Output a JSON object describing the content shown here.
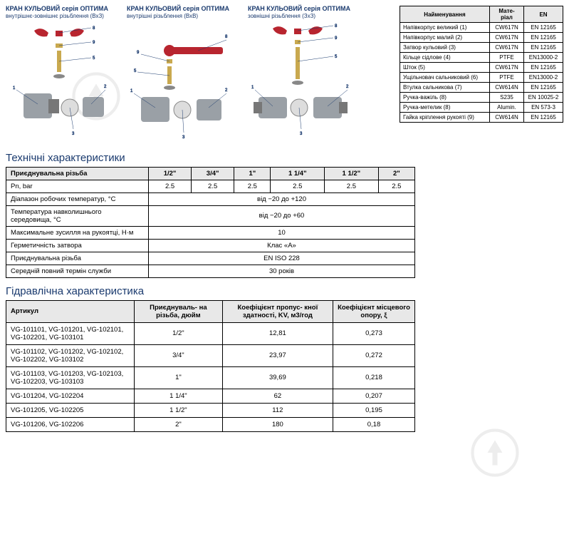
{
  "diagrams": [
    {
      "title": "КРАН КУЛЬОВИЙ серія ОПТИМА",
      "subtitle": "внутрішнє-зовнішнє різьблення (ВхЗ)"
    },
    {
      "title": "КРАН КУЛЬОВИЙ серія ОПТИМА",
      "subtitle": "внутрішні різьблення (ВхВ)"
    },
    {
      "title": "КРАН КУЛЬОВИЙ серія ОПТИМА",
      "subtitle": "зовнішні різьблення (ЗхЗ)"
    }
  ],
  "materials": {
    "headers": [
      "Найменування",
      "Мате-\nріал",
      "EN"
    ],
    "rows": [
      [
        "Напівкорпус великий (1)",
        "CW617N",
        "EN 12165"
      ],
      [
        "Напівкорпус малий (2)",
        "CW617N",
        "EN 12165"
      ],
      [
        "Затвор кульовий (3)",
        "CW617N",
        "EN 12165"
      ],
      [
        "Кільце сідлове (4)",
        "PTFE",
        "EN13000-2"
      ],
      [
        "Шток (5)",
        "CW617N",
        "EN 12165"
      ],
      [
        "Ущільновач сальниковий (6)",
        "PTFE",
        "EN13000-2"
      ],
      [
        "Втулка сальникова (7)",
        "CW614N",
        "EN 12165"
      ],
      [
        "Ручка-важіль (8)",
        "S235",
        "EN 10025-2"
      ],
      [
        "Ручка-метелик (8)",
        "Alumin.",
        "EN 573-3"
      ],
      [
        "Гайка кріплення рукояті (9)",
        "CW614N",
        "EN 12165"
      ]
    ]
  },
  "tech_title": "Технічні характеристики",
  "tech": {
    "header_row": [
      "Приєднувальна різьба",
      "1/2\"",
      "3/4\"",
      "1\"",
      "1 1/4\"",
      "1 1/2\"",
      "2\""
    ],
    "rows": [
      {
        "label": "Pn, bar",
        "vals": [
          "2.5",
          "2.5",
          "2.5",
          "2.5",
          "2.5",
          "2.5"
        ]
      },
      {
        "label": "Діапазон робочих температур, °С",
        "span": "від −20 до +120"
      },
      {
        "label": "Температура навколишнього середовища, °С",
        "span": "від −20 до +60"
      },
      {
        "label": "Максимальне зусилля на рукоятці, Н·м",
        "span": "10"
      },
      {
        "label": "Герметичність затвора",
        "span": "Клас «А»"
      },
      {
        "label": "Приєднувальна різьба",
        "span": "EN ISO 228"
      },
      {
        "label": "Середній повний термін служби",
        "span": "30 років"
      }
    ]
  },
  "hydro_title": "Гідравлічна характеристика",
  "hydro": {
    "headers": [
      "Артикул",
      "Приєднуваль-\nна різьба, дюйм",
      "Коефіцієнт пропус-\nкної здатності, KV, м3/год",
      "Коефіцієнт місцевого опору, ξ"
    ],
    "rows": [
      [
        "VG-101101, VG-101201, VG-102101, VG-102201, VG-103101",
        "1/2\"",
        "12,81",
        "0,273"
      ],
      [
        "VG-101102, VG-101202, VG-102102, VG-102202, VG-103102",
        "3/4\"",
        "23,97",
        "0,272"
      ],
      [
        "VG-101103, VG-101203, VG-102103, VG-102203, VG-103103",
        "1\"",
        "39,69",
        "0,218"
      ],
      [
        "VG-101204, VG-102204",
        "1 1/4\"",
        "62",
        "0,207"
      ],
      [
        "VG-101205, VG-102205",
        "1 1/2\"",
        "112",
        "0,195"
      ],
      [
        "VG-101206, VG-102206",
        "2\"",
        "180",
        "0,18"
      ]
    ]
  },
  "colors": {
    "heading": "#1a3a6e",
    "table_header_bg": "#e8e8e8",
    "border": "#000000",
    "handle_red": "#b8252f",
    "brass": "#c9a94f",
    "body_gray": "#9aa0a6",
    "watermark": "#cccccc"
  }
}
